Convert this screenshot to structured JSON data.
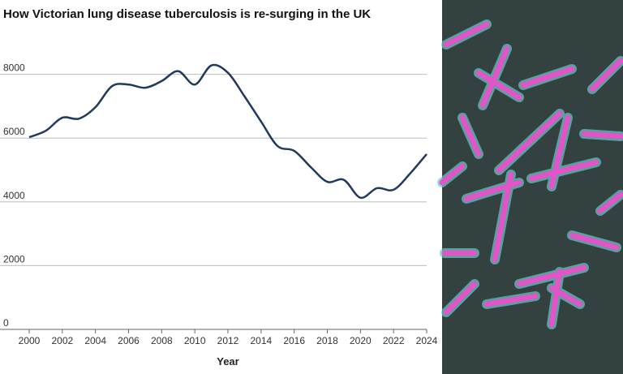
{
  "chart_data": {
    "type": "line",
    "title": "How Victorian lung disease tuberculosis is re-surging in the UK",
    "x_label": "Year",
    "x": [
      2000,
      2001,
      2002,
      2003,
      2004,
      2005,
      2006,
      2007,
      2008,
      2009,
      2010,
      2011,
      2012,
      2013,
      2014,
      2015,
      2016,
      2017,
      2018,
      2019,
      2020,
      2021,
      2022,
      2023,
      2024
    ],
    "series": [
      {
        "color": "#1f3a5f",
        "values": [
          6030,
          6230,
          6640,
          6610,
          6970,
          7630,
          7680,
          7580,
          7790,
          8100,
          7680,
          8280,
          8050,
          7310,
          6520,
          5750,
          5600,
          5090,
          4630,
          4690,
          4130,
          4430,
          4380,
          4890,
          5500
        ]
      }
    ],
    "xlim": [
      2000,
      2024
    ],
    "xticks": [
      2000,
      2002,
      2004,
      2006,
      2008,
      2010,
      2012,
      2014,
      2016,
      2018,
      2020,
      2022,
      2024
    ],
    "ylim": [
      0,
      8500
    ],
    "yticks": [
      0,
      2000,
      4000,
      6000,
      8000
    ],
    "grid": true
  }
}
